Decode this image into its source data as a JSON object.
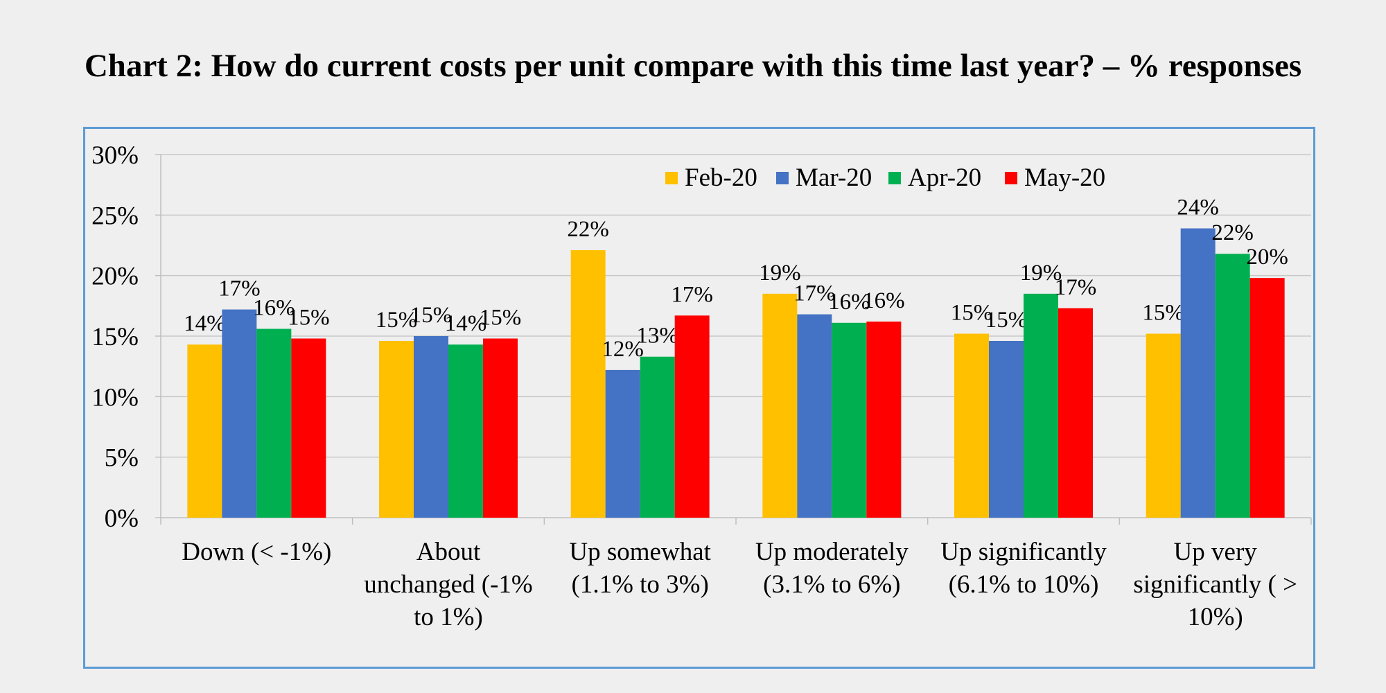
{
  "chart_data": {
    "type": "bar",
    "title": "Chart 2: How do current costs per unit compare with this time last year? – % responses",
    "xlabel": "",
    "ylabel": "",
    "ylim": [
      0,
      30
    ],
    "yticks": [
      "0%",
      "5%",
      "10%",
      "15%",
      "20%",
      "25%",
      "30%"
    ],
    "grid": true,
    "legend_position": "top-right",
    "categories": [
      [
        "Down (< -1%)"
      ],
      [
        "About",
        "unchanged (-1%",
        "to 1%)"
      ],
      [
        "Up somewhat",
        "(1.1% to 3%)"
      ],
      [
        "Up moderately",
        "(3.1% to 6%)"
      ],
      [
        "Up significantly",
        "(6.1% to 10%)"
      ],
      [
        "Up very",
        "significantly ( >",
        "10%)"
      ]
    ],
    "series": [
      {
        "name": "Feb-20",
        "color": "#ffc000",
        "values": [
          14.3,
          14.6,
          22.1,
          18.5,
          15.2,
          15.2
        ],
        "labels": [
          "14%",
          "15%",
          "22%",
          "19%",
          "15%",
          "15%"
        ]
      },
      {
        "name": "Mar-20",
        "color": "#4472c4",
        "values": [
          17.2,
          15.0,
          12.2,
          16.8,
          14.6,
          23.9
        ],
        "labels": [
          "17%",
          "15%",
          "12%",
          "17%",
          "15%",
          "24%"
        ]
      },
      {
        "name": "Apr-20",
        "color": "#00b050",
        "values": [
          15.6,
          14.3,
          13.3,
          16.1,
          18.5,
          21.8
        ],
        "labels": [
          "16%",
          "14%",
          "13%",
          "16%",
          "19%",
          "22%"
        ]
      },
      {
        "name": "May-20",
        "color": "#ff0000",
        "values": [
          14.8,
          14.8,
          16.7,
          16.2,
          17.3,
          19.8
        ],
        "labels": [
          "15%",
          "15%",
          "17%",
          "16%",
          "17%",
          "20%"
        ]
      }
    ]
  }
}
